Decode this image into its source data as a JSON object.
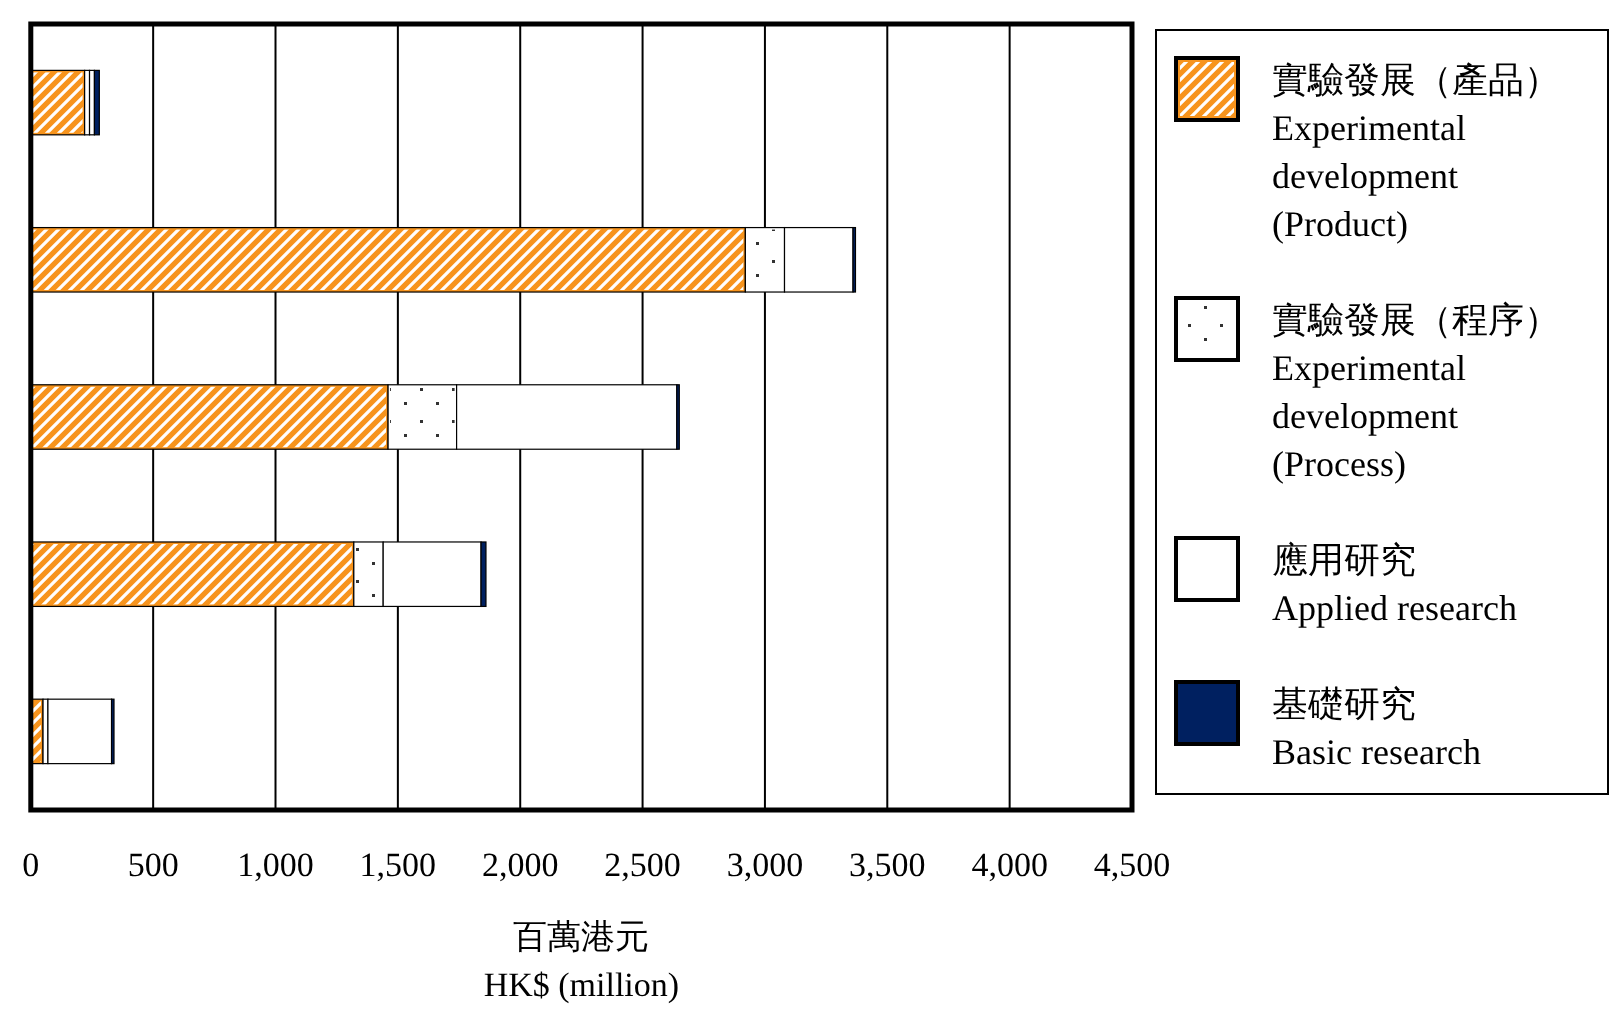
{
  "chart_data": {
    "type": "bar",
    "orientation": "horizontal",
    "stacked": true,
    "categories": [
      null,
      null,
      null,
      null,
      null
    ],
    "series": [
      {
        "name": "實驗發展（產品）\nExperimental\ndevelopment\n(Product)",
        "color": "#f7941d",
        "values": [
          220,
          2920,
          1460,
          1320,
          50
        ]
      },
      {
        "name": "實驗發展（程序）\nExperimental\ndevelopment\n(Process)",
        "color": "#ffffff",
        "values": [
          20,
          160,
          280,
          120,
          20
        ]
      },
      {
        "name": "應用研究\nApplied research",
        "color": "#ffffff",
        "values": [
          20,
          280,
          900,
          400,
          260
        ]
      },
      {
        "name": "基礎研究\nBasic research",
        "color": "#002060",
        "values": [
          20,
          10,
          10,
          20,
          10
        ]
      }
    ],
    "xlim": [
      0,
      4500
    ],
    "xticks": [
      0,
      500,
      {
        "value": 1000,
        "label": "1,000"
      },
      {
        "value": 1500,
        "label": "1,500"
      },
      {
        "value": 2000,
        "label": "2,000"
      },
      {
        "value": 2500,
        "label": "2,500"
      },
      {
        "value": 3000,
        "label": "3,000"
      },
      {
        "value": 3500,
        "label": "3,500"
      },
      {
        "value": 4000,
        "label": "4,000"
      },
      {
        "value": 4500,
        "label": "4,500"
      }
    ],
    "xlabel": "百萬港元\nHK$ (million)",
    "grid": "x",
    "legend": "right",
    "tick_labels": "x"
  }
}
